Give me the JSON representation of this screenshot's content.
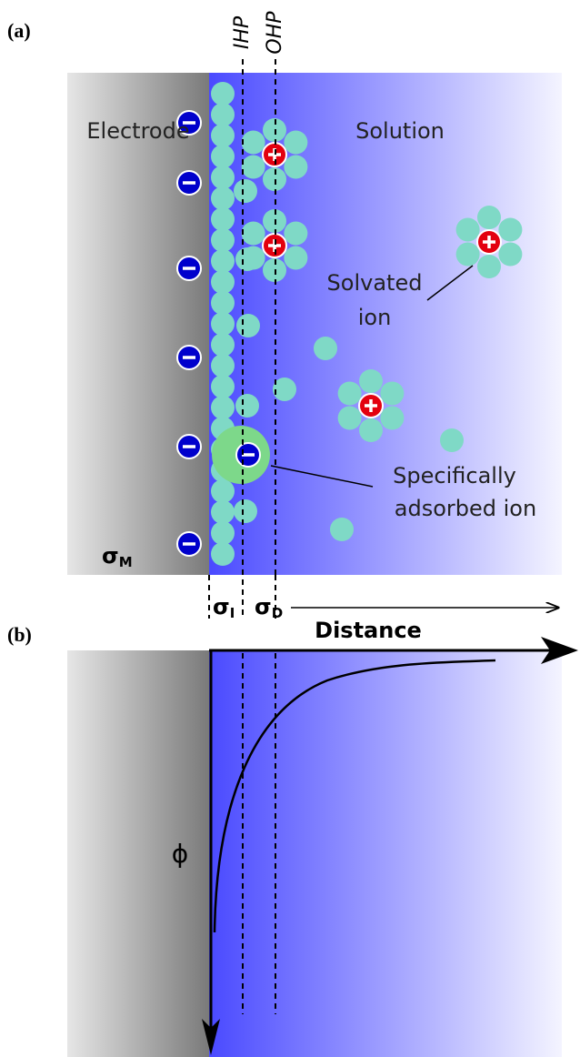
{
  "panel_a": {
    "label": "(a)",
    "ihp": "IHP",
    "ohp": "OHP",
    "electrode": "Electrode",
    "solution": "Solution",
    "solvated_ion": [
      "Solvated",
      "ion"
    ],
    "specifically_adsorbed_ion": [
      "Specifically",
      "adsorbed ion"
    ],
    "sigma_m": {
      "symbol": "σ",
      "subscript": "M"
    },
    "sigma_i": {
      "symbol": "σ",
      "subscript": "I"
    },
    "sigma_d": {
      "symbol": "σ",
      "subscript": "D"
    }
  },
  "panel_b": {
    "label": "(b)",
    "distance": "Distance",
    "phi": "ϕ"
  }
}
